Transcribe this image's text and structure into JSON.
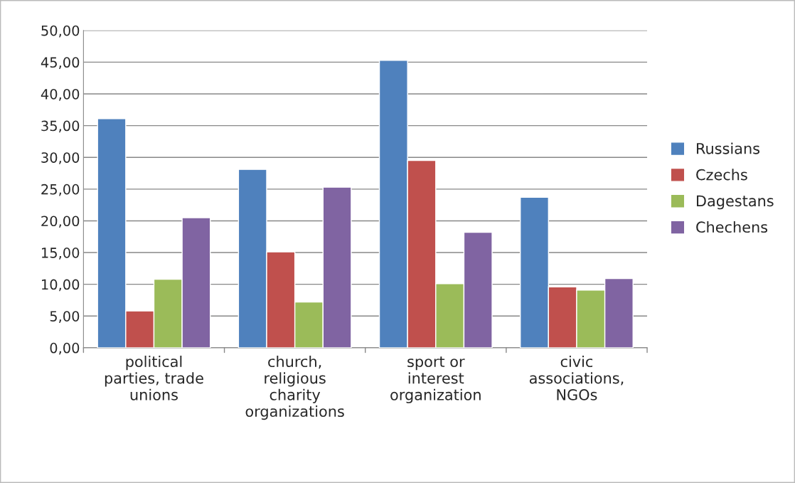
{
  "chart_data": {
    "type": "bar",
    "categories": [
      "political\nparties, trade\nunions",
      "church,\nreligious\ncharity\norganizations",
      "sport or\ninterest\norganization",
      "civic\nassociations,\nNGOs"
    ],
    "series": [
      {
        "name": "Russians",
        "color": "#4f81bd",
        "values": [
          36.1,
          28.1,
          45.3,
          23.7
        ]
      },
      {
        "name": "Czechs",
        "color": "#c0504d",
        "values": [
          5.8,
          15.1,
          29.5,
          9.6
        ]
      },
      {
        "name": "Dagestans",
        "color": "#9bbb59",
        "values": [
          10.8,
          7.2,
          10.1,
          9.1
        ]
      },
      {
        "name": "Chechens",
        "color": "#8064a2",
        "values": [
          20.5,
          25.3,
          18.2,
          10.9
        ]
      }
    ],
    "ylim": [
      0,
      50
    ],
    "yticks": [
      {
        "value": 0,
        "label": "0,00"
      },
      {
        "value": 5,
        "label": "5,00"
      },
      {
        "value": 10,
        "label": "10,00"
      },
      {
        "value": 15,
        "label": "15,00"
      },
      {
        "value": 20,
        "label": "20,00"
      },
      {
        "value": 25,
        "label": "25,00"
      },
      {
        "value": 30,
        "label": "30,00"
      },
      {
        "value": 35,
        "label": "35,00"
      },
      {
        "value": 40,
        "label": "40,00"
      },
      {
        "value": 45,
        "label": "45,00"
      },
      {
        "value": 50,
        "label": "50,00"
      }
    ],
    "grid": "y",
    "legend": "right"
  }
}
